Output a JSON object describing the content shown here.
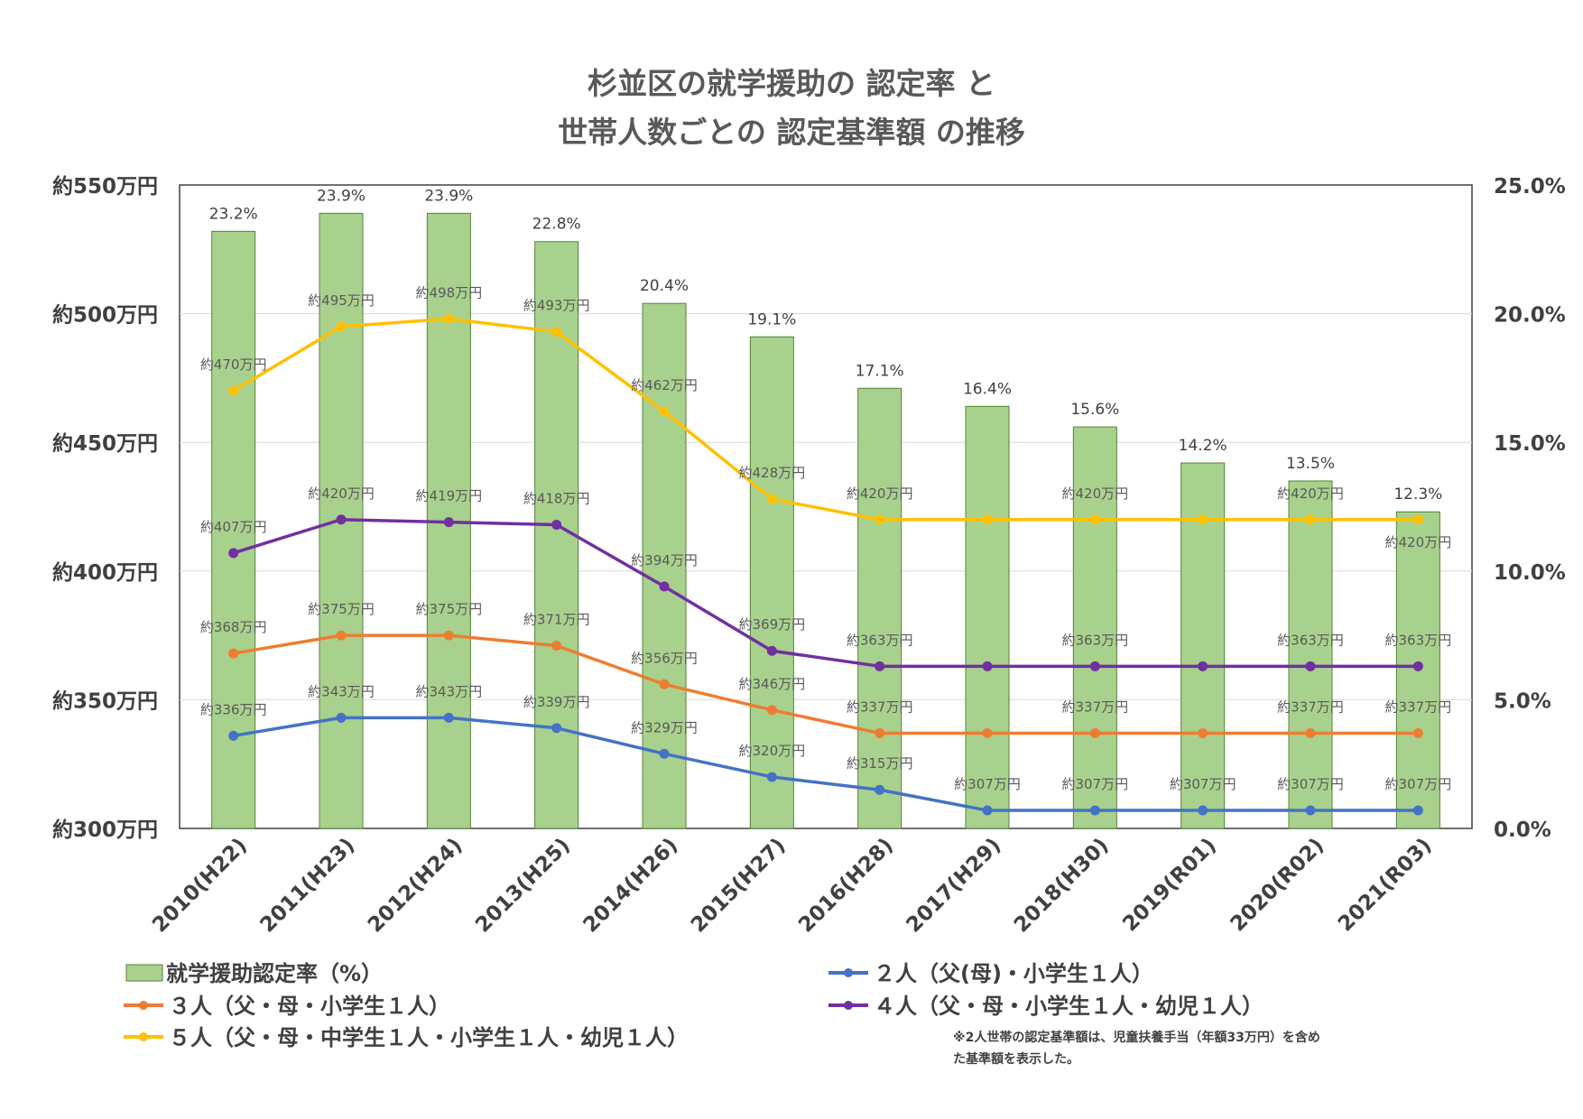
{
  "chart_data": {
    "type": "bar+line",
    "title_lines": [
      "杉並区の就学援助の 認定率 と",
      "世帯人数ごとの 認定基準額 の推移"
    ],
    "categories": [
      "2010(H22)",
      "2011(H23)",
      "2012(H24)",
      "2013(H25)",
      "2014(H26)",
      "2015(H27)",
      "2016(H28)",
      "2017(H29)",
      "2018(H30)",
      "2019(R01)",
      "2020(R02)",
      "2021(R03)"
    ],
    "left_axis": {
      "min": 300,
      "max": 550,
      "ticks": [
        300,
        350,
        400,
        450,
        500,
        550
      ],
      "tick_labels": [
        "約300万円",
        "約350万円",
        "約400万円",
        "約450万円",
        "約500万円",
        "約550万円"
      ]
    },
    "right_axis": {
      "min": 0,
      "max": 25,
      "ticks": [
        0,
        5,
        10,
        15,
        20,
        25
      ],
      "tick_labels": [
        "0.0%",
        "5.0%",
        "10.0%",
        "15.0%",
        "20.0%",
        "25.0%"
      ]
    },
    "grid": true,
    "bars": {
      "name": "就学援助認定率（%）",
      "color": "#a9d18e",
      "edge_color": "#548235",
      "values": [
        23.2,
        23.9,
        23.9,
        22.8,
        20.4,
        19.1,
        17.1,
        16.4,
        15.6,
        14.2,
        13.5,
        12.3
      ],
      "labels": [
        "23.2%",
        "23.9%",
        "23.9%",
        "22.8%",
        "20.4%",
        "19.1%",
        "17.1%",
        "16.4%",
        "15.6%",
        "14.2%",
        "13.5%",
        "12.3%"
      ]
    },
    "series": [
      {
        "name": "２人（父(母)・小学生１人）",
        "color": "#4472c4",
        "values": [
          336,
          343,
          343,
          339,
          329,
          320,
          315,
          307,
          307,
          307,
          307,
          307
        ],
        "labels": [
          "約336万円",
          "約343万円",
          "約343万円",
          "約339万円",
          "約329万円",
          "約320万円",
          "約315万円",
          "約307万円",
          "約307万円",
          "約307万円",
          "約307万円",
          "約307万円"
        ]
      },
      {
        "name": "３人（父・母・小学生１人）",
        "color": "#ed7d31",
        "values": [
          368,
          375,
          375,
          371,
          356,
          346,
          337,
          337,
          337,
          337,
          337,
          337
        ],
        "labels": [
          "約368万円",
          "約375万円",
          "約375万円",
          "約371万円",
          "約356万円",
          "約346万円",
          "約337万円",
          "",
          "約337万円",
          "",
          "約337万円",
          "約337万円"
        ]
      },
      {
        "name": "４人（父・母・小学生１人・幼児１人）",
        "color": "#7030a0",
        "values": [
          407,
          420,
          419,
          418,
          394,
          369,
          363,
          363,
          363,
          363,
          363,
          363
        ],
        "labels": [
          "約407万円",
          "約420万円",
          "約419万円",
          "約418万円",
          "約394万円",
          "約369万円",
          "約363万円",
          "",
          "約363万円",
          "",
          "約363万円",
          "約363万円"
        ]
      },
      {
        "name": "５人（父・母・中学生１人・小学生１人・幼児１人）",
        "color": "#ffc000",
        "values": [
          470,
          495,
          498,
          493,
          462,
          428,
          420,
          420,
          420,
          420,
          420,
          420
        ],
        "labels": [
          "約470万円",
          "約495万円",
          "約498万円",
          "約493万円",
          "約462万円",
          "約428万円",
          "約420万円",
          "",
          "約420万円",
          "",
          "約420万円",
          "約420万円"
        ]
      }
    ],
    "note_lines": [
      "※2人世帯の認定基準額は、児童扶養手当（年額33万円）を含め",
      "た基準額を表示した。"
    ]
  }
}
